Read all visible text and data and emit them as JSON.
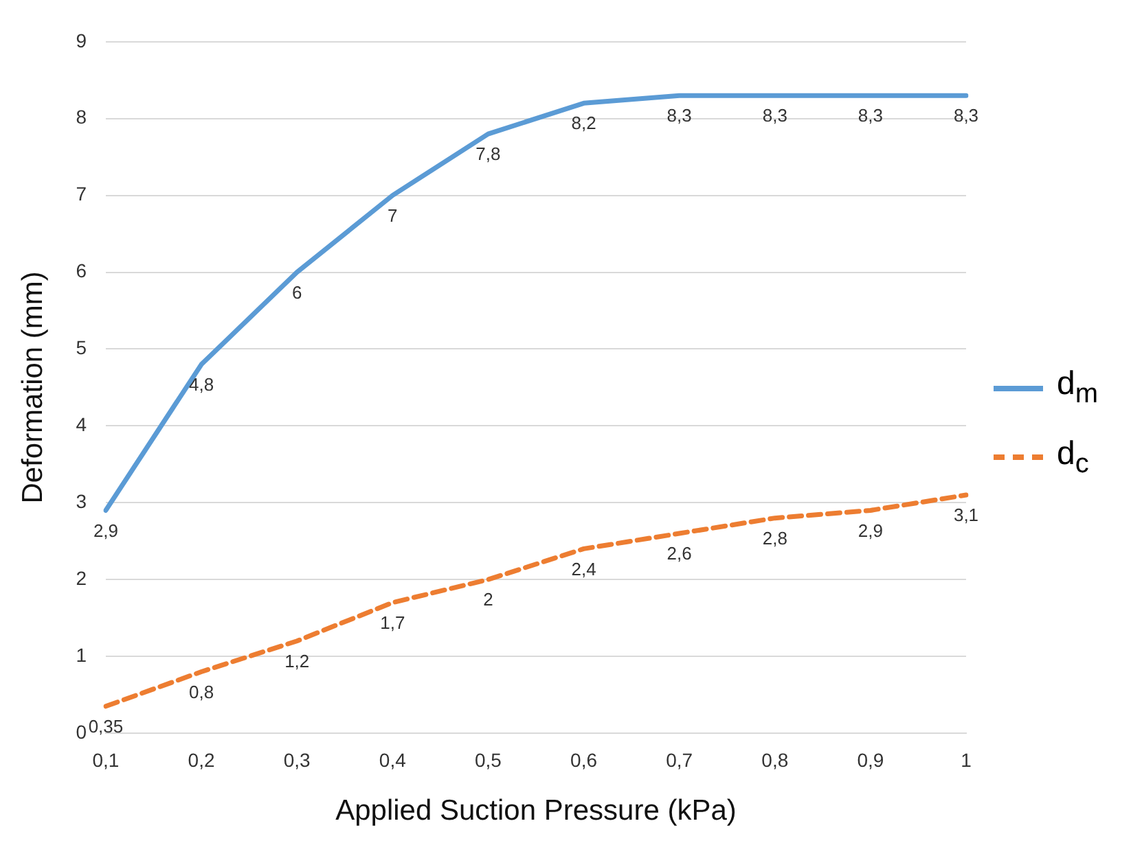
{
  "chart_data": {
    "type": "line",
    "xlabel": "Applied Suction Pressure (kPa)",
    "ylabel": "Deformation (mm)",
    "categories": [
      "0,1",
      "0,2",
      "0,3",
      "0,4",
      "0,5",
      "0,6",
      "0,7",
      "0,8",
      "0,9",
      "1"
    ],
    "series": [
      {
        "name": "d$_{m}$",
        "color": "#5b9bd5",
        "line_style": "solid",
        "values": [
          2.9,
          4.8,
          6,
          7,
          7.8,
          8.2,
          8.3,
          8.3,
          8.3,
          8.3
        ],
        "value_labels": [
          "2,9",
          "4,8",
          "6",
          "7",
          "7,8",
          "8,2",
          "8,3",
          "8,3",
          "8,3",
          "8,3"
        ]
      },
      {
        "name": "d$_{c}$",
        "color": "#ed7d31",
        "line_style": "dashed",
        "values": [
          0.35,
          0.8,
          1.2,
          1.7,
          2,
          2.4,
          2.6,
          2.8,
          2.9,
          3.1
        ],
        "value_labels": [
          "0,35",
          "0,8",
          "1,2",
          "1,7",
          "2",
          "2,4",
          "2,6",
          "2,8",
          "2,9",
          "3,1"
        ]
      }
    ],
    "ylim": [
      0,
      9
    ],
    "yticks": [
      0,
      1,
      2,
      3,
      4,
      5,
      6,
      7,
      8,
      9
    ],
    "grid": "y",
    "legend": "right",
    "marker": "none"
  }
}
